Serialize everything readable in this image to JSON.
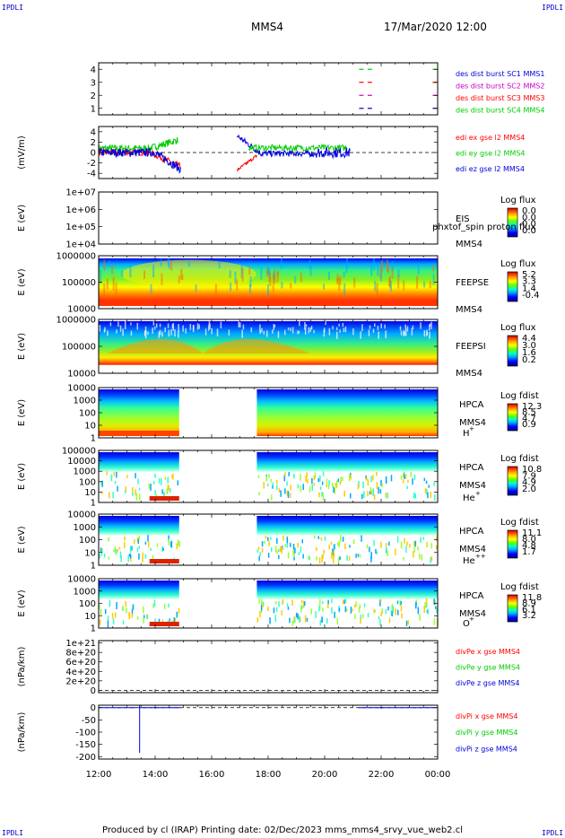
{
  "corner_label": "IPDLI",
  "header": {
    "spacecraft": "MMS4",
    "datetime": "17/Mar/2020 12:00"
  },
  "footer": "Produced by cl (IRAP)   Printing date: 02/Dec/2023   mms_mms4_srvy_vue_web2.cl",
  "colors": {
    "red": "#ff0000",
    "green": "#00cc00",
    "blue": "#0000dd",
    "magenta": "#cc00cc",
    "colorbar_stops": [
      "#000080",
      "#0000ff",
      "#00aaff",
      "#00ffcc",
      "#66ff00",
      "#ffff00",
      "#ffaa00",
      "#ff4400",
      "#cc0000"
    ]
  },
  "chart_data": {
    "type": "multi-panel",
    "time_axis": {
      "range_hours": [
        12,
        24
      ],
      "tick_labels": [
        "12:00",
        "14:00",
        "16:00",
        "18:00",
        "20:00",
        "22:00",
        "00:00"
      ]
    },
    "panels": [
      {
        "id": "burst",
        "type": "scatter",
        "ylabel": "",
        "ylim": [
          0.5,
          4.5
        ],
        "yticks": [
          "1",
          "2",
          "3",
          "4"
        ],
        "legend": [
          "des dist burst SC1 MMS1",
          "des dist burst SC2 MMS2",
          "des dist burst SC3 MMS3",
          "des dist burst SC4 MMS4"
        ],
        "legend_colors": [
          "#0000dd",
          "#cc00cc",
          "#ff0000",
          "#00cc00"
        ],
        "series": [
          {
            "name": "des dist burst SC1 MMS1",
            "level": 1,
            "x": [
              21.3,
              21.6,
              23.9
            ]
          },
          {
            "name": "des dist burst SC2 MMS2",
            "level": 2,
            "x": [
              21.3,
              21.6,
              23.9
            ]
          },
          {
            "name": "des dist burst SC3 MMS3",
            "level": 3,
            "x": [
              21.3,
              21.6,
              23.9
            ]
          },
          {
            "name": "des dist burst SC4 MMS4",
            "level": 4,
            "x": [
              21.3,
              21.6,
              23.9
            ]
          }
        ]
      },
      {
        "id": "edi",
        "type": "line",
        "ylabel": "(mV/m)",
        "ylim": [
          -5,
          5
        ],
        "yticks": [
          "4",
          "2",
          "0",
          "-2",
          "-4"
        ],
        "legend": [
          "edi ex gse l2 MMS4",
          "edi ey gse l2 MMS4",
          "edi ez gse l2 MMS4"
        ],
        "legend_colors": [
          "#ff0000",
          "#00cc00",
          "#0000dd"
        ]
      },
      {
        "id": "eis",
        "type": "heatmap",
        "ylabel": "E (eV)",
        "yscale": "log",
        "yticks": [
          "1e+07",
          "1e+06",
          "1e+05",
          "1e+04"
        ],
        "instrument": "EIS",
        "sc_label": "MMS4",
        "overlay_text": "phxtof_spin proton flux",
        "colorbar_title": "Log flux",
        "colorbar_ticks": [
          "0.0",
          "0.0",
          "0.0",
          "0.0"
        ]
      },
      {
        "id": "feeps_e",
        "type": "heatmap",
        "ylabel": "E (eV)",
        "yscale": "log",
        "yticks": [
          "1000000",
          "100000",
          "10000"
        ],
        "instrument": "FEEPSE",
        "sc_label": "MMS4",
        "colorbar_title": "Log flux",
        "colorbar_ticks": [
          "5.2",
          "3.3",
          "1.4",
          "-0.4"
        ]
      },
      {
        "id": "feeps_i",
        "type": "heatmap",
        "ylabel": "E (eV)",
        "yscale": "log",
        "yticks": [
          "1000000",
          "100000",
          "10000"
        ],
        "instrument": "FEEPSI",
        "sc_label": "MMS4",
        "colorbar_title": "Log flux",
        "colorbar_ticks": [
          "4.4",
          "3.0",
          "1.6",
          "0.2"
        ]
      },
      {
        "id": "hpca_h",
        "type": "heatmap",
        "ylabel": "E (eV)",
        "yscale": "log",
        "yticks": [
          "10000",
          "1000",
          "100",
          "10",
          "1"
        ],
        "instrument": "HPCA",
        "sc_label": "MMS4",
        "species": "H",
        "charge": "+",
        "colorbar_title": "Log fdist",
        "colorbar_ticks": [
          "12.3",
          "8.5",
          "4.7",
          "0.9"
        ]
      },
      {
        "id": "hpca_he1",
        "type": "heatmap",
        "ylabel": "E (eV)",
        "yscale": "log",
        "yticks": [
          "100000",
          "10000",
          "1000",
          "100",
          "10",
          "1"
        ],
        "instrument": "HPCA",
        "sc_label": "MMS4",
        "species": "He",
        "charge": "+",
        "colorbar_title": "Log fdist",
        "colorbar_ticks": [
          "10.8",
          "7.9",
          "4.9",
          "2.0"
        ]
      },
      {
        "id": "hpca_he2",
        "type": "heatmap",
        "ylabel": "E (eV)",
        "yscale": "log",
        "yticks": [
          "10000",
          "1000",
          "100",
          "10",
          "1"
        ],
        "instrument": "HPCA",
        "sc_label": "MMS4",
        "species": "He",
        "charge": "++",
        "colorbar_title": "Log fdist",
        "colorbar_ticks": [
          "11.1",
          "8.0",
          "4.8",
          "1.7"
        ]
      },
      {
        "id": "hpca_o",
        "type": "heatmap",
        "ylabel": "E (eV)",
        "yscale": "log",
        "yticks": [
          "10000",
          "1000",
          "100",
          "10",
          "1"
        ],
        "instrument": "HPCA",
        "sc_label": "MMS4",
        "species": "O",
        "charge": "+",
        "colorbar_title": "Log fdist",
        "colorbar_ticks": [
          "11.8",
          "8.9",
          "6.1",
          "3.2"
        ]
      },
      {
        "id": "divpe",
        "type": "line",
        "ylabel": "(nPa/km)",
        "ylim": [
          -5e+19,
          1.05e+21
        ],
        "yticks": [
          "1e+21",
          "8e+20",
          "6e+20",
          "4e+20",
          "2e+20",
          "0"
        ],
        "legend": [
          "divPe x gse MMS4",
          "divPe y gse MMS4",
          "divPe z gse MMS4"
        ],
        "legend_colors": [
          "#ff0000",
          "#00cc00",
          "#0000dd"
        ]
      },
      {
        "id": "divpi",
        "type": "line",
        "ylabel": "(nPa/km)",
        "ylim": [
          -210,
          10
        ],
        "yticks": [
          "0",
          "-50",
          "-100",
          "-150",
          "-200"
        ],
        "yticks_minor": [
          "5",
          "-25",
          "-75",
          "-125",
          "-175"
        ],
        "legend": [
          "divPi x gse MMS4",
          "divPi y gse MMS4",
          "divPi z gse MMS4"
        ],
        "legend_colors": [
          "#ff0000",
          "#00cc00",
          "#0000dd"
        ],
        "series": [
          {
            "name": "divPi z gse MMS4",
            "segments": [
              {
                "x": [
                  12.0,
                  13.35
                ],
                "y": [
                  0,
                  0
                ]
              },
              {
                "x": [
                  13.45,
                  13.45
                ],
                "y": [
                  10,
                  -185
                ]
              },
              {
                "x": [
                  13.45,
                  14.9
                ],
                "y": [
                  0,
                  0
                ]
              },
              {
                "x": [
                  21.2,
                  24.0
                ],
                "y": [
                  0,
                  0
                ]
              }
            ]
          }
        ]
      }
    ]
  }
}
